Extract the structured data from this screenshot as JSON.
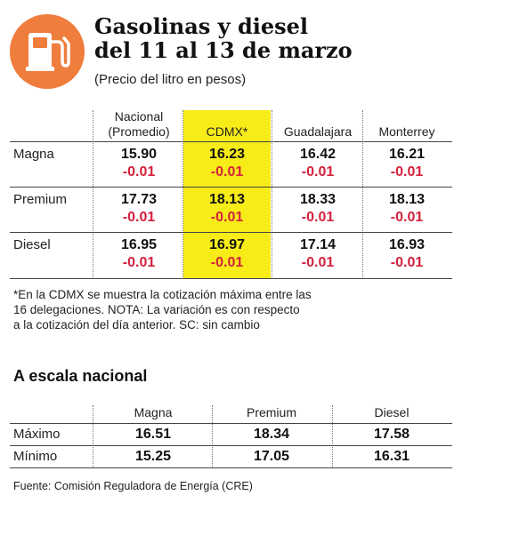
{
  "header": {
    "title_line1": "Gasolinas y diesel",
    "title_line2": "del 11 al 13 de marzo",
    "subtitle": "(Precio del litro en pesos)",
    "icon": "fuel-pump-icon",
    "icon_color": "#ef7d3c"
  },
  "table": {
    "columns": [
      {
        "line1": "Nacional",
        "line2": "(Promedio)"
      },
      {
        "line1": "CDMX*",
        "line2": ""
      },
      {
        "line1": "Guadalajara",
        "line2": ""
      },
      {
        "line1": "Monterrey",
        "line2": ""
      }
    ],
    "highlight_color": "#f7ec18",
    "change_color": "#d4213d",
    "rows": [
      {
        "label": "Magna",
        "prices": [
          "15.90",
          "16.23",
          "16.42",
          "16.21"
        ],
        "changes": [
          "-0.01",
          "-0.01",
          "-0.01",
          "-0.01"
        ]
      },
      {
        "label": "Premium",
        "prices": [
          "17.73",
          "18.13",
          "18.33",
          "18.13"
        ],
        "changes": [
          "-0.01",
          "-0.01",
          "-0.01",
          "-0.01"
        ]
      },
      {
        "label": "Diesel",
        "prices": [
          "16.95",
          "16.97",
          "17.14",
          "16.93"
        ],
        "changes": [
          "-0.01",
          "-0.01",
          "-0.01",
          "-0.01"
        ]
      }
    ]
  },
  "note": {
    "line1": "*En la CDMX se muestra la cotización máxima entre las",
    "line2": "16 delegaciones. NOTA: La variación es con respecto",
    "line3": "a la cotización del día anterior. SC: sin cambio"
  },
  "national": {
    "title": "A escala nacional",
    "columns": [
      "Magna",
      "Premium",
      "Diesel"
    ],
    "rows": [
      {
        "label": "Máximo",
        "values": [
          "16.51",
          "18.34",
          "17.58"
        ]
      },
      {
        "label": "Mínimo",
        "values": [
          "15.25",
          "17.05",
          "16.31"
        ]
      }
    ]
  },
  "source": "Fuente: Comisión Reguladora de Energía (CRE)"
}
